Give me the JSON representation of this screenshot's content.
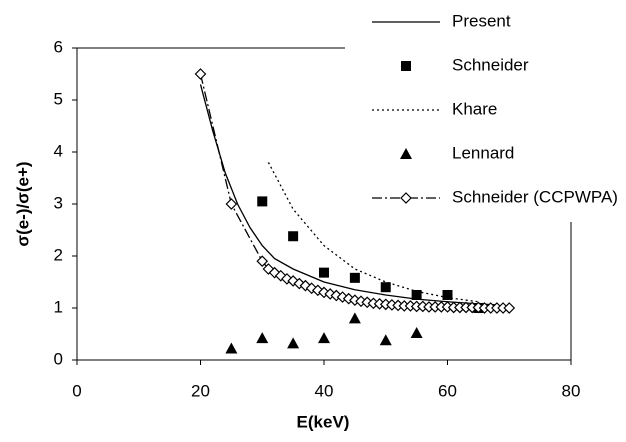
{
  "chart_data": {
    "type": "line",
    "x_label": "E(keV)",
    "y_label": "σ(e-)/σ(e+)",
    "xlim": [
      0,
      80
    ],
    "xticks": [
      0,
      20,
      40,
      60,
      80
    ],
    "ylim": [
      0,
      6
    ],
    "yticks": [
      0,
      1,
      2,
      3,
      4,
      5,
      6
    ],
    "grid": false,
    "legend": "top-right",
    "series": [
      {
        "name": "Present",
        "color": "#000000",
        "line": "solid",
        "marker": "none",
        "x": [
          20,
          22,
          24,
          26,
          28,
          30,
          32,
          35,
          40,
          45,
          50,
          55,
          60,
          65,
          68
        ],
        "values": [
          5.3,
          4.4,
          3.6,
          3.0,
          2.55,
          2.2,
          1.95,
          1.75,
          1.5,
          1.35,
          1.25,
          1.17,
          1.12,
          1.08,
          1.06
        ]
      },
      {
        "name": "Schneider",
        "color": "#000000",
        "line": "none",
        "marker": "square",
        "x": [
          30,
          35,
          40,
          45,
          50,
          55,
          60,
          65
        ],
        "values": [
          3.05,
          2.38,
          1.68,
          1.58,
          1.4,
          1.25,
          1.25,
          1.0
        ]
      },
      {
        "name": "Khare",
        "color": "#000000",
        "line": "dotted",
        "marker": "none",
        "x": [
          31,
          35,
          40,
          45,
          50,
          55,
          60,
          65
        ],
        "values": [
          3.8,
          2.9,
          2.2,
          1.75,
          1.5,
          1.32,
          1.2,
          1.12
        ]
      },
      {
        "name": "Lennard",
        "color": "#000000",
        "line": "none",
        "marker": "triangle",
        "x": [
          25,
          30,
          35,
          40,
          45,
          50,
          55
        ],
        "values": [
          0.22,
          0.42,
          0.32,
          0.42,
          0.8,
          0.38,
          0.52
        ]
      },
      {
        "name": "Schneider (CCPWPA)",
        "color": "#000000",
        "line": "dashdot",
        "marker": "diamond",
        "x": [
          20,
          25,
          30,
          31,
          32,
          33,
          34,
          35,
          36,
          37,
          38,
          39,
          40,
          41,
          42,
          43,
          44,
          45,
          46,
          47,
          48,
          49,
          50,
          51,
          52,
          53,
          54,
          55,
          56,
          57,
          58,
          59,
          60,
          61,
          62,
          63,
          64,
          65,
          66,
          67,
          68,
          69,
          70
        ],
        "values": [
          5.5,
          3.0,
          1.9,
          1.75,
          1.68,
          1.62,
          1.56,
          1.52,
          1.47,
          1.43,
          1.38,
          1.34,
          1.3,
          1.27,
          1.24,
          1.21,
          1.18,
          1.15,
          1.13,
          1.11,
          1.09,
          1.08,
          1.07,
          1.06,
          1.05,
          1.04,
          1.04,
          1.03,
          1.03,
          1.02,
          1.02,
          1.02,
          1.02,
          1.01,
          1.01,
          1.01,
          1.01,
          1.01,
          1.0,
          1.0,
          1.0,
          1.0,
          1.0
        ]
      }
    ]
  }
}
